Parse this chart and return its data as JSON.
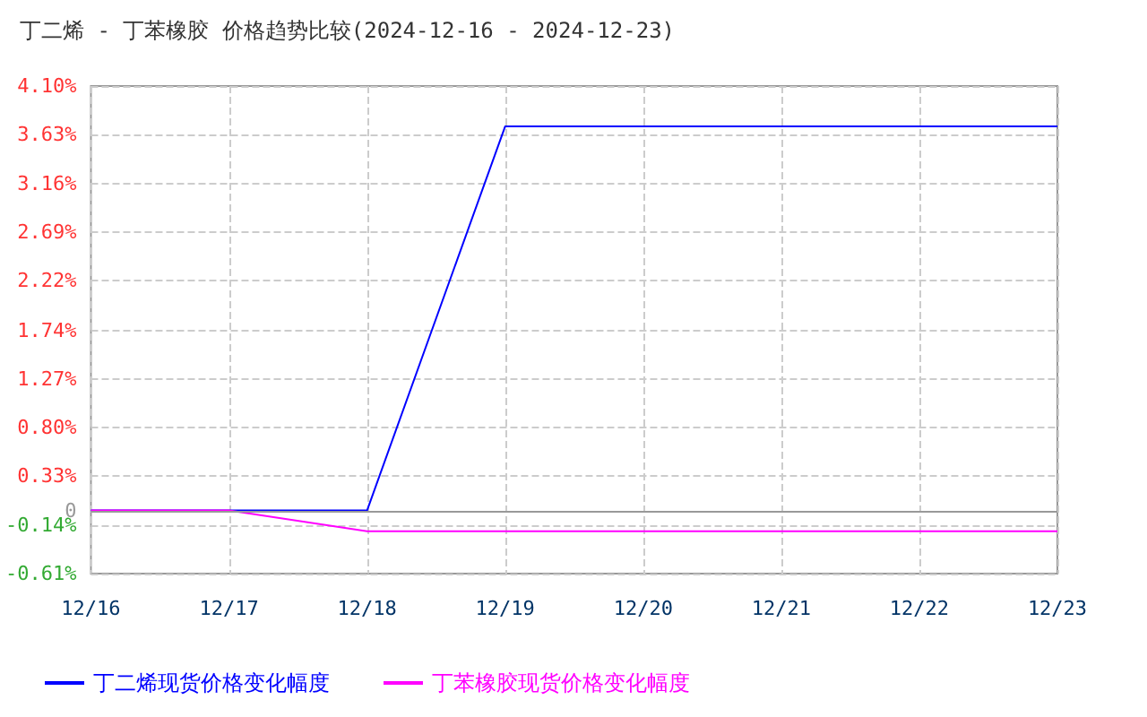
{
  "chart_data": {
    "type": "line",
    "title": "丁二烯 - 丁苯橡胶 价格趋势比较(2024-12-16 - 2024-12-23)",
    "categories": [
      "12/16",
      "12/17",
      "12/18",
      "12/19",
      "12/20",
      "12/21",
      "12/22",
      "12/23"
    ],
    "series": [
      {
        "name": "丁二烯现货价格变化幅度",
        "color": "#0000ff",
        "values": [
          0,
          0,
          0,
          3.71,
          3.71,
          3.71,
          3.71,
          3.71
        ]
      },
      {
        "name": "丁苯橡胶现货价格变化幅度",
        "color": "#ff00ff",
        "values": [
          0,
          0,
          -0.2,
          -0.2,
          -0.2,
          -0.2,
          -0.2,
          -0.2
        ]
      }
    ],
    "ylim": [
      -0.61,
      4.1
    ],
    "yticks": [
      {
        "value": -0.61,
        "label": "-0.61%"
      },
      {
        "value": -0.14,
        "label": "-0.14%"
      },
      0,
      {
        "value": 0.33,
        "label": "0.33%"
      },
      {
        "value": 0.8,
        "label": "0.80%"
      },
      {
        "value": 1.27,
        "label": "1.27%"
      },
      {
        "value": 1.74,
        "label": "1.74%"
      },
      {
        "value": 2.22,
        "label": "2.22%"
      },
      {
        "value": 2.69,
        "label": "2.69%"
      },
      {
        "value": 3.16,
        "label": "3.16%"
      },
      {
        "value": 3.63,
        "label": "3.63%"
      },
      {
        "value": 4.1,
        "label": "4.10%"
      }
    ],
    "ref_lines": [
      {
        "axis": "y",
        "value": 0,
        "color": "#999999"
      }
    ],
    "grid": true,
    "legend": "bottom",
    "marker": "none",
    "line_style": "solid"
  }
}
